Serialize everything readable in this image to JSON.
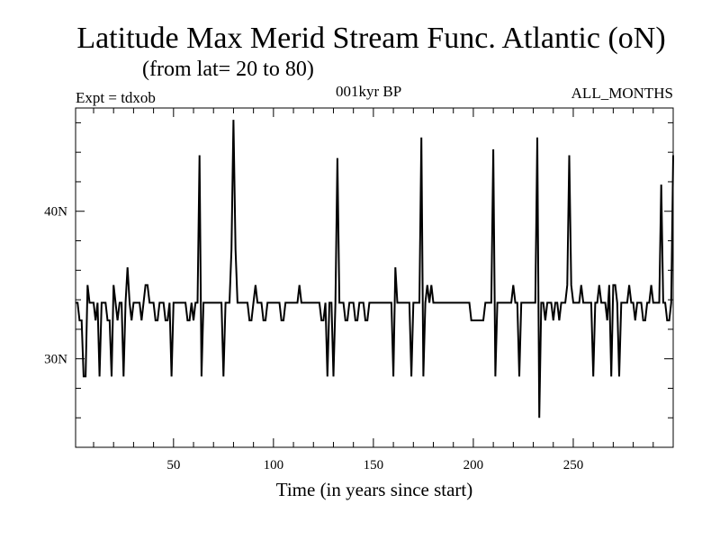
{
  "chart_data": {
    "type": "line",
    "title": "Latitude Max Merid Stream Func. Atlantic (oN)",
    "subtitle": "(from lat= 20 to 80)",
    "experiment_label": "Expt = tdxob",
    "period_label": "001kyr BP",
    "season_label": "ALL_MONTHS",
    "xlabel": "Time (in years since start)",
    "ylabel": "",
    "xlim": [
      1,
      300
    ],
    "ylim": [
      24,
      47
    ],
    "x_ticks": [
      50,
      100,
      150,
      200,
      250
    ],
    "x_tick_labels": [
      "50",
      "100",
      "150",
      "200",
      "250"
    ],
    "y_ticks": [
      30,
      40
    ],
    "y_tick_labels": [
      "30N",
      "40N"
    ],
    "grid": false,
    "line_color": "#000000",
    "series": [
      {
        "name": "",
        "points": [
          [
            1,
            33.8
          ],
          [
            2,
            33.8
          ],
          [
            3,
            32.6
          ],
          [
            4,
            32.6
          ],
          [
            5,
            28.8
          ],
          [
            6,
            28.8
          ],
          [
            7,
            35.0
          ],
          [
            8,
            33.8
          ],
          [
            9,
            33.8
          ],
          [
            10,
            33.8
          ],
          [
            11,
            32.6
          ],
          [
            12,
            33.8
          ],
          [
            13,
            28.8
          ],
          [
            14,
            33.8
          ],
          [
            15,
            33.8
          ],
          [
            16,
            33.8
          ],
          [
            17,
            32.6
          ],
          [
            18,
            32.6
          ],
          [
            19,
            28.8
          ],
          [
            20,
            35.0
          ],
          [
            21,
            33.8
          ],
          [
            22,
            32.6
          ],
          [
            23,
            33.8
          ],
          [
            24,
            33.8
          ],
          [
            25,
            28.8
          ],
          [
            26,
            33.8
          ],
          [
            27,
            36.2
          ],
          [
            28,
            33.8
          ],
          [
            29,
            32.6
          ],
          [
            30,
            33.8
          ],
          [
            31,
            33.8
          ],
          [
            32,
            33.8
          ],
          [
            33,
            33.8
          ],
          [
            34,
            32.6
          ],
          [
            35,
            33.8
          ],
          [
            36,
            35.0
          ],
          [
            37,
            35.0
          ],
          [
            38,
            33.8
          ],
          [
            39,
            33.8
          ],
          [
            40,
            33.8
          ],
          [
            41,
            32.6
          ],
          [
            42,
            32.6
          ],
          [
            43,
            33.8
          ],
          [
            44,
            33.8
          ],
          [
            45,
            33.8
          ],
          [
            46,
            32.6
          ],
          [
            47,
            32.6
          ],
          [
            48,
            33.8
          ],
          [
            49,
            28.8
          ],
          [
            50,
            33.8
          ],
          [
            51,
            33.8
          ],
          [
            52,
            33.8
          ],
          [
            53,
            33.8
          ],
          [
            54,
            33.8
          ],
          [
            55,
            33.8
          ],
          [
            56,
            33.8
          ],
          [
            57,
            32.6
          ],
          [
            58,
            32.6
          ],
          [
            59,
            33.8
          ],
          [
            60,
            32.6
          ],
          [
            61,
            33.8
          ],
          [
            62,
            33.8
          ],
          [
            63,
            43.8
          ],
          [
            64,
            28.8
          ],
          [
            65,
            33.8
          ],
          [
            66,
            33.8
          ],
          [
            67,
            33.8
          ],
          [
            68,
            33.8
          ],
          [
            69,
            33.8
          ],
          [
            70,
            33.8
          ],
          [
            71,
            33.8
          ],
          [
            72,
            33.8
          ],
          [
            73,
            33.8
          ],
          [
            74,
            33.8
          ],
          [
            75,
            28.8
          ],
          [
            76,
            33.8
          ],
          [
            77,
            33.8
          ],
          [
            78,
            33.8
          ],
          [
            79,
            37.4
          ],
          [
            80,
            46.2
          ],
          [
            81,
            37.4
          ],
          [
            82,
            33.8
          ],
          [
            83,
            33.8
          ],
          [
            84,
            33.8
          ],
          [
            85,
            33.8
          ],
          [
            86,
            33.8
          ],
          [
            87,
            33.8
          ],
          [
            88,
            32.6
          ],
          [
            89,
            32.6
          ],
          [
            90,
            33.8
          ],
          [
            91,
            35.0
          ],
          [
            92,
            33.8
          ],
          [
            93,
            33.8
          ],
          [
            94,
            33.8
          ],
          [
            95,
            32.6
          ],
          [
            96,
            32.6
          ],
          [
            97,
            33.8
          ],
          [
            98,
            33.8
          ],
          [
            99,
            33.8
          ],
          [
            100,
            33.8
          ],
          [
            101,
            33.8
          ],
          [
            102,
            33.8
          ],
          [
            103,
            33.8
          ],
          [
            104,
            32.6
          ],
          [
            105,
            32.6
          ],
          [
            106,
            33.8
          ],
          [
            107,
            33.8
          ],
          [
            108,
            33.8
          ],
          [
            109,
            33.8
          ],
          [
            110,
            33.8
          ],
          [
            111,
            33.8
          ],
          [
            112,
            33.8
          ],
          [
            113,
            35.0
          ],
          [
            114,
            33.8
          ],
          [
            115,
            33.8
          ],
          [
            116,
            33.8
          ],
          [
            117,
            33.8
          ],
          [
            118,
            33.8
          ],
          [
            119,
            33.8
          ],
          [
            120,
            33.8
          ],
          [
            121,
            33.8
          ],
          [
            122,
            33.8
          ],
          [
            123,
            33.8
          ],
          [
            124,
            32.6
          ],
          [
            125,
            32.6
          ],
          [
            126,
            33.8
          ],
          [
            127,
            28.8
          ],
          [
            128,
            33.8
          ],
          [
            129,
            33.8
          ],
          [
            130,
            28.8
          ],
          [
            131,
            33.8
          ],
          [
            132,
            43.6
          ],
          [
            133,
            33.8
          ],
          [
            134,
            33.8
          ],
          [
            135,
            33.8
          ],
          [
            136,
            32.6
          ],
          [
            137,
            32.6
          ],
          [
            138,
            33.8
          ],
          [
            139,
            33.8
          ],
          [
            140,
            33.8
          ],
          [
            141,
            32.6
          ],
          [
            142,
            32.6
          ],
          [
            143,
            33.8
          ],
          [
            144,
            33.8
          ],
          [
            145,
            33.8
          ],
          [
            146,
            32.6
          ],
          [
            147,
            32.6
          ],
          [
            148,
            33.8
          ],
          [
            149,
            33.8
          ],
          [
            150,
            33.8
          ],
          [
            151,
            33.8
          ],
          [
            152,
            33.8
          ],
          [
            153,
            33.8
          ],
          [
            154,
            33.8
          ],
          [
            155,
            33.8
          ],
          [
            156,
            33.8
          ],
          [
            157,
            33.8
          ],
          [
            158,
            33.8
          ],
          [
            159,
            33.8
          ],
          [
            160,
            28.8
          ],
          [
            161,
            36.2
          ],
          [
            162,
            33.8
          ],
          [
            163,
            33.8
          ],
          [
            164,
            33.8
          ],
          [
            165,
            33.8
          ],
          [
            166,
            33.8
          ],
          [
            167,
            33.8
          ],
          [
            168,
            33.8
          ],
          [
            169,
            28.8
          ],
          [
            170,
            33.8
          ],
          [
            171,
            33.8
          ],
          [
            172,
            33.8
          ],
          [
            173,
            33.8
          ],
          [
            174,
            45.0
          ],
          [
            175,
            28.8
          ],
          [
            176,
            33.8
          ],
          [
            177,
            35.0
          ],
          [
            178,
            33.8
          ],
          [
            179,
            35.0
          ],
          [
            180,
            33.8
          ],
          [
            181,
            33.8
          ],
          [
            182,
            33.8
          ],
          [
            183,
            33.8
          ],
          [
            184,
            33.8
          ],
          [
            185,
            33.8
          ],
          [
            186,
            33.8
          ],
          [
            187,
            33.8
          ],
          [
            188,
            33.8
          ],
          [
            189,
            33.8
          ],
          [
            190,
            33.8
          ],
          [
            191,
            33.8
          ],
          [
            192,
            33.8
          ],
          [
            193,
            33.8
          ],
          [
            194,
            33.8
          ],
          [
            195,
            33.8
          ],
          [
            196,
            33.8
          ],
          [
            197,
            33.8
          ],
          [
            198,
            33.8
          ],
          [
            199,
            32.6
          ],
          [
            200,
            32.6
          ],
          [
            201,
            32.6
          ],
          [
            202,
            32.6
          ],
          [
            203,
            32.6
          ],
          [
            204,
            32.6
          ],
          [
            205,
            32.6
          ],
          [
            206,
            33.8
          ],
          [
            207,
            33.8
          ],
          [
            208,
            33.8
          ],
          [
            209,
            33.8
          ],
          [
            210,
            44.2
          ],
          [
            211,
            28.8
          ],
          [
            212,
            33.8
          ],
          [
            213,
            33.8
          ],
          [
            214,
            33.8
          ],
          [
            215,
            33.8
          ],
          [
            216,
            33.8
          ],
          [
            217,
            33.8
          ],
          [
            218,
            33.8
          ],
          [
            219,
            33.8
          ],
          [
            220,
            35.0
          ],
          [
            221,
            33.8
          ],
          [
            222,
            33.8
          ],
          [
            223,
            28.8
          ],
          [
            224,
            33.8
          ],
          [
            225,
            33.8
          ],
          [
            226,
            33.8
          ],
          [
            227,
            33.8
          ],
          [
            228,
            33.8
          ],
          [
            229,
            33.8
          ],
          [
            230,
            33.8
          ],
          [
            231,
            33.8
          ],
          [
            232,
            45.0
          ],
          [
            233,
            26.0
          ],
          [
            234,
            33.8
          ],
          [
            235,
            33.8
          ],
          [
            236,
            32.6
          ],
          [
            237,
            33.8
          ],
          [
            238,
            33.8
          ],
          [
            239,
            33.8
          ],
          [
            240,
            32.6
          ],
          [
            241,
            33.8
          ],
          [
            242,
            33.8
          ],
          [
            243,
            32.6
          ],
          [
            244,
            33.8
          ],
          [
            245,
            33.8
          ],
          [
            246,
            33.8
          ],
          [
            247,
            35.0
          ],
          [
            248,
            43.8
          ],
          [
            249,
            35.0
          ],
          [
            250,
            33.8
          ],
          [
            251,
            33.8
          ],
          [
            252,
            33.8
          ],
          [
            253,
            33.8
          ],
          [
            254,
            35.0
          ],
          [
            255,
            33.8
          ],
          [
            256,
            33.8
          ],
          [
            257,
            33.8
          ],
          [
            258,
            33.8
          ],
          [
            259,
            33.8
          ],
          [
            260,
            28.8
          ],
          [
            261,
            33.8
          ],
          [
            262,
            33.8
          ],
          [
            263,
            35.0
          ],
          [
            264,
            33.8
          ],
          [
            265,
            33.8
          ],
          [
            266,
            33.8
          ],
          [
            267,
            32.6
          ],
          [
            268,
            35.0
          ],
          [
            269,
            28.8
          ],
          [
            270,
            35.0
          ],
          [
            271,
            35.0
          ],
          [
            272,
            33.8
          ],
          [
            273,
            28.8
          ],
          [
            274,
            33.8
          ],
          [
            275,
            33.8
          ],
          [
            276,
            33.8
          ],
          [
            277,
            33.8
          ],
          [
            278,
            35.0
          ],
          [
            279,
            33.8
          ],
          [
            280,
            33.8
          ],
          [
            281,
            32.6
          ],
          [
            282,
            33.8
          ],
          [
            283,
            33.8
          ],
          [
            284,
            33.8
          ],
          [
            285,
            32.6
          ],
          [
            286,
            32.6
          ],
          [
            287,
            33.8
          ],
          [
            288,
            33.8
          ],
          [
            289,
            35.0
          ],
          [
            290,
            33.8
          ],
          [
            291,
            33.8
          ],
          [
            292,
            33.8
          ],
          [
            293,
            33.8
          ],
          [
            294,
            41.8
          ],
          [
            295,
            33.8
          ],
          [
            296,
            33.8
          ],
          [
            297,
            32.6
          ],
          [
            298,
            32.6
          ],
          [
            299,
            33.8
          ],
          [
            300,
            43.8
          ]
        ]
      }
    ]
  }
}
